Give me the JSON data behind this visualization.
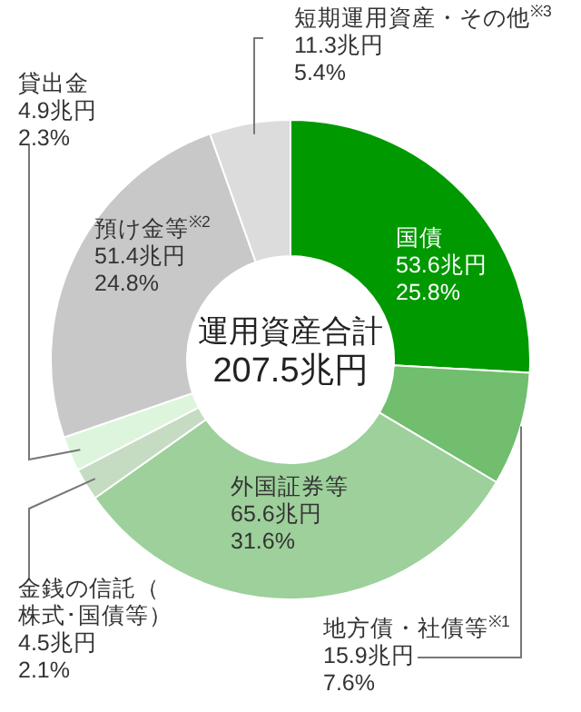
{
  "chart_data": {
    "type": "donut",
    "categories": [
      "国債",
      "地方債・社債等$^{※1}$",
      "外国証券等",
      "金銭の信託（株式･国債等）",
      "貸出金",
      "預け金等$^{※2}$",
      "短期運用資産・その他$^{※3}$"
    ],
    "values": [
      53.6,
      15.9,
      65.6,
      4.5,
      4.9,
      51.4,
      11.3
    ],
    "value_labels": [
      "53.6兆円\n25.8%",
      "15.9兆円\n7.6%",
      "65.6兆円\n31.6%",
      "4.5兆円\n2.1%",
      "4.9兆円\n2.3%",
      "51.4兆円\n24.8%",
      "11.3兆円\n5.4%"
    ],
    "colors": [
      "#009900",
      "#70be6e",
      "#9dd09a",
      "#c5dcc3",
      "#dcf5dc",
      "#c8c8c8",
      "#dcdcdc"
    ],
    "annotations": [
      "運用資産合計",
      "207.5兆円"
    ]
  }
}
